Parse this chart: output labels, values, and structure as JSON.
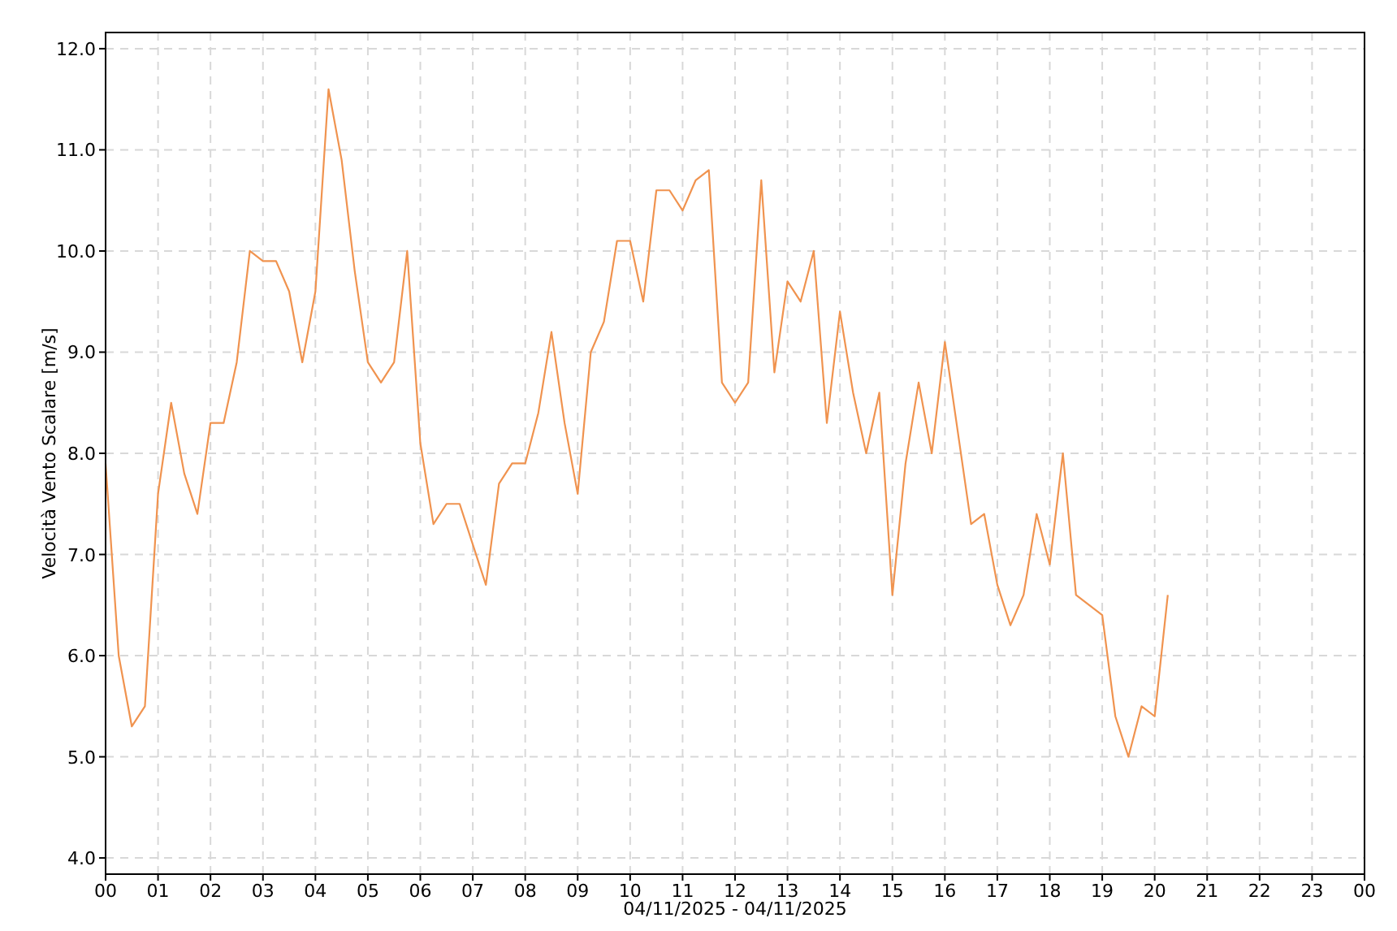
{
  "chart_data": {
    "type": "line",
    "xlabel": "04/11/2025 - 04/11/2025",
    "ylabel": "Velocità Vento Scalare [m/s]",
    "x": [
      0,
      0.25,
      0.5,
      0.75,
      1,
      1.25,
      1.5,
      1.75,
      2,
      2.25,
      2.5,
      2.75,
      3,
      3.25,
      3.5,
      3.75,
      4,
      4.25,
      4.5,
      4.75,
      5,
      5.25,
      5.5,
      5.75,
      6,
      6.25,
      6.5,
      6.75,
      7,
      7.25,
      7.5,
      7.75,
      8,
      8.25,
      8.5,
      8.75,
      9,
      9.25,
      9.5,
      9.75,
      10,
      10.25,
      10.5,
      10.75,
      11,
      11.25,
      11.5,
      11.75,
      12,
      12.25,
      12.5,
      12.75,
      13,
      13.25,
      13.5,
      13.75,
      14,
      14.25,
      14.5,
      14.75,
      15,
      15.25,
      15.5,
      15.75,
      16,
      16.25,
      16.5,
      16.75,
      17,
      17.25,
      17.5,
      17.75,
      18,
      18.25,
      18.5,
      19,
      19.25,
      19.5,
      19.75,
      20,
      20.25
    ],
    "series": [
      {
        "color": "#f0934f",
        "values": [
          7.9,
          6.0,
          5.3,
          5.5,
          7.6,
          8.5,
          7.8,
          7.4,
          8.3,
          8.3,
          8.9,
          10.0,
          9.9,
          9.9,
          9.6,
          8.9,
          9.6,
          11.6,
          10.9,
          9.8,
          8.9,
          8.7,
          8.9,
          10.0,
          8.1,
          7.3,
          7.5,
          7.5,
          7.1,
          6.7,
          7.7,
          7.9,
          7.9,
          8.4,
          9.2,
          8.3,
          7.6,
          9.0,
          9.3,
          10.1,
          10.1,
          9.5,
          10.6,
          10.6,
          10.4,
          10.7,
          10.8,
          8.7,
          8.5,
          8.7,
          10.7,
          8.8,
          9.7,
          9.5,
          10.0,
          8.3,
          9.4,
          8.6,
          8.0,
          8.6,
          6.6,
          7.9,
          8.7,
          8.0,
          9.1,
          8.2,
          7.3,
          7.4,
          6.7,
          6.3,
          6.6,
          7.4,
          6.9,
          8.0,
          6.6,
          6.4,
          5.4,
          5.0,
          5.5,
          5.4,
          6.6
        ]
      }
    ],
    "xlim": [
      0,
      24
    ],
    "xticks": [
      {
        "value": 0,
        "label": "00"
      },
      {
        "value": 1,
        "label": "01"
      },
      {
        "value": 2,
        "label": "02"
      },
      {
        "value": 3,
        "label": "03"
      },
      {
        "value": 4,
        "label": "04"
      },
      {
        "value": 5,
        "label": "05"
      },
      {
        "value": 6,
        "label": "06"
      },
      {
        "value": 7,
        "label": "07"
      },
      {
        "value": 8,
        "label": "08"
      },
      {
        "value": 9,
        "label": "09"
      },
      {
        "value": 10,
        "label": "10"
      },
      {
        "value": 11,
        "label": "11"
      },
      {
        "value": 12,
        "label": "12"
      },
      {
        "value": 13,
        "label": "13"
      },
      {
        "value": 14,
        "label": "14"
      },
      {
        "value": 15,
        "label": "15"
      },
      {
        "value": 16,
        "label": "16"
      },
      {
        "value": 17,
        "label": "17"
      },
      {
        "value": 18,
        "label": "18"
      },
      {
        "value": 19,
        "label": "19"
      },
      {
        "value": 20,
        "label": "20"
      },
      {
        "value": 21,
        "label": "21"
      },
      {
        "value": 22,
        "label": "22"
      },
      {
        "value": 23,
        "label": "23"
      },
      {
        "value": 24,
        "label": "00"
      }
    ],
    "ylim": [
      3.84,
      12.16
    ],
    "yticks": [
      {
        "value": 4,
        "label": "4.0"
      },
      {
        "value": 5,
        "label": "5.0"
      },
      {
        "value": 6,
        "label": "6.0"
      },
      {
        "value": 7,
        "label": "7.0"
      },
      {
        "value": 8,
        "label": "8.0"
      },
      {
        "value": 9,
        "label": "9.0"
      },
      {
        "value": 10,
        "label": "10.0"
      },
      {
        "value": 11,
        "label": "11.0"
      },
      {
        "value": 12,
        "label": "12.0"
      }
    ],
    "grid": true,
    "line_style": "solid",
    "marker": "none"
  }
}
